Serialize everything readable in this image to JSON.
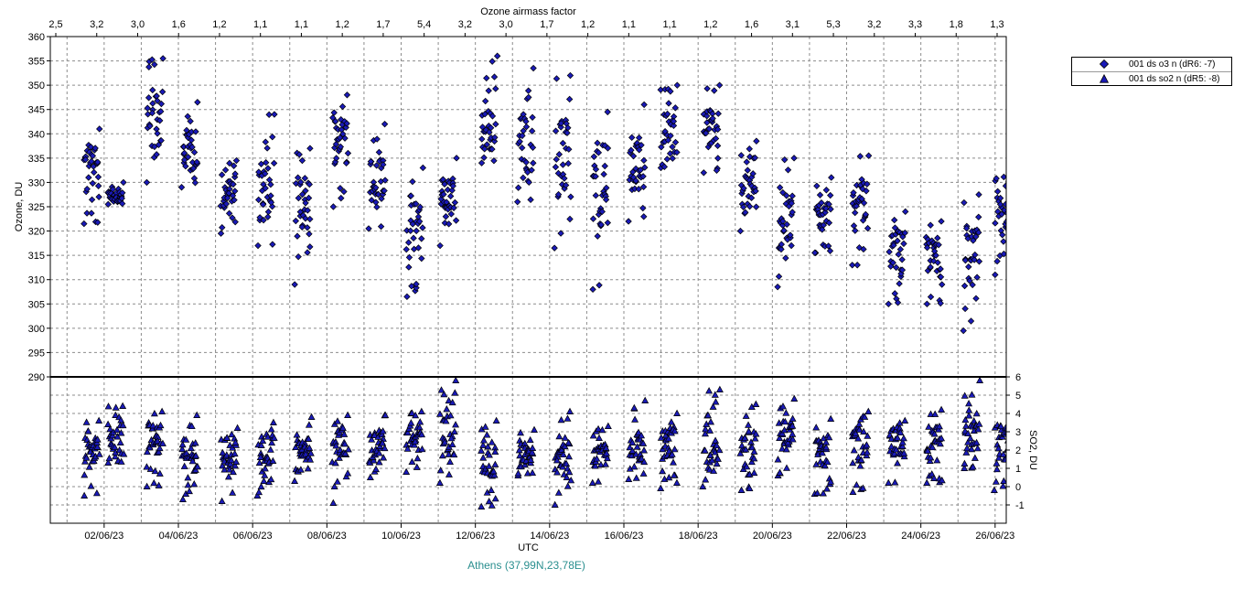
{
  "chart_data": {
    "type": "scatter",
    "top_axis_label": "Ozone airmass factor",
    "top_axis_ticks": [
      "2,5",
      "3,2",
      "3,0",
      "1,6",
      "1,2",
      "1,1",
      "1,1",
      "1,2",
      "1,7",
      "5,4",
      "3,2",
      "3,0",
      "1,7",
      "1,2",
      "1,1",
      "1,1",
      "1,2",
      "1,6",
      "3,1",
      "5,3",
      "3,2",
      "3,3",
      "1,8",
      "1,3"
    ],
    "xlabel": "UTC",
    "x_ticks": [
      "02/06/23",
      "04/06/23",
      "06/06/23",
      "08/06/23",
      "10/06/23",
      "12/06/23",
      "14/06/23",
      "16/06/23",
      "18/06/23",
      "20/06/23",
      "22/06/23",
      "24/06/23",
      "26/06/23"
    ],
    "x_range_days": [
      0.55,
      26.3
    ],
    "upper_panel": {
      "ylabel": "Ozone, DU",
      "ylim": [
        290,
        360
      ],
      "y_ticks": [
        360,
        355,
        350,
        345,
        340,
        335,
        330,
        325,
        320,
        315,
        310,
        305,
        300,
        295,
        290
      ]
    },
    "lower_panel": {
      "ylabel": "SO2, DU",
      "ylim": [
        -2,
        6
      ],
      "y_ticks": [
        6,
        5,
        4,
        3,
        2,
        1,
        0,
        -1
      ]
    },
    "grid": true,
    "legend_position": "top-right outside",
    "legend": [
      {
        "marker": "diamond",
        "label": "001 ds o3  n (dR6: -7)"
      },
      {
        "marker": "triangle",
        "label": "001 ds so2 n (dR5: -8)"
      }
    ],
    "footer": "Athens (37,99N,23,78E)",
    "colors": {
      "marker_fill": "#1a1ab8",
      "marker_edge": "#000000",
      "grid": "#8c8c8c",
      "footer": "#2a8f8f"
    },
    "series": [
      {
        "name": "001 ds o3  n (dR6: -7)",
        "panel": "upper",
        "marker": "diamond",
        "daily_clusters": [
          {
            "day": 1.65,
            "min": 321.5,
            "max": 341,
            "center": 334
          },
          {
            "day": 2.3,
            "min": 325.5,
            "max": 330,
            "center": 327
          },
          {
            "day": 3.35,
            "min": 330,
            "max": 355.5,
            "center": 343
          },
          {
            "day": 4.3,
            "min": 329,
            "max": 346.5,
            "center": 336
          },
          {
            "day": 5.35,
            "min": 319.5,
            "max": 334.5,
            "center": 328
          },
          {
            "day": 6.35,
            "min": 317,
            "max": 344,
            "center": 328
          },
          {
            "day": 7.35,
            "min": 309,
            "max": 337,
            "center": 324
          },
          {
            "day": 8.35,
            "min": 325,
            "max": 348,
            "center": 339
          },
          {
            "day": 9.35,
            "min": 320.5,
            "max": 342,
            "center": 332
          },
          {
            "day": 10.35,
            "min": 306.5,
            "max": 333,
            "center": 320
          },
          {
            "day": 11.25,
            "min": 317,
            "max": 335,
            "center": 327
          },
          {
            "day": 12.35,
            "min": 334,
            "max": 356,
            "center": 341
          },
          {
            "day": 13.35,
            "min": 326,
            "max": 353.5,
            "center": 338
          },
          {
            "day": 14.35,
            "min": 316.5,
            "max": 352,
            "center": 335
          },
          {
            "day": 15.35,
            "min": 308,
            "max": 344.5,
            "center": 328
          },
          {
            "day": 16.35,
            "min": 322,
            "max": 346,
            "center": 334
          },
          {
            "day": 17.2,
            "min": 333,
            "max": 350,
            "center": 340
          },
          {
            "day": 18.35,
            "min": 332,
            "max": 350,
            "center": 341
          },
          {
            "day": 19.35,
            "min": 320,
            "max": 338.5,
            "center": 329
          },
          {
            "day": 20.35,
            "min": 308.5,
            "max": 335,
            "center": 322
          },
          {
            "day": 21.35,
            "min": 315.5,
            "max": 331,
            "center": 323
          },
          {
            "day": 22.35,
            "min": 313,
            "max": 335.5,
            "center": 325
          },
          {
            "day": 23.35,
            "min": 305,
            "max": 324,
            "center": 316
          },
          {
            "day": 24.35,
            "min": 305,
            "max": 322,
            "center": 315
          },
          {
            "day": 25.35,
            "min": 299.5,
            "max": 327.5,
            "center": 314
          },
          {
            "day": 26.2,
            "min": 311,
            "max": 333.5,
            "center": 322
          }
        ]
      },
      {
        "name": "001 ds so2 n (dR5: -8)",
        "panel": "lower",
        "marker": "triangle",
        "daily_clusters": [
          {
            "day": 1.65,
            "min": -0.5,
            "max": 3.6,
            "center": 1.8
          },
          {
            "day": 2.3,
            "min": 1.3,
            "max": 4.4,
            "center": 2.5
          },
          {
            "day": 3.35,
            "min": 0,
            "max": 4.1,
            "center": 2.5
          },
          {
            "day": 4.3,
            "min": -0.7,
            "max": 3.9,
            "center": 1.8
          },
          {
            "day": 5.35,
            "min": -0.8,
            "max": 3.2,
            "center": 1.8
          },
          {
            "day": 6.35,
            "min": -0.5,
            "max": 3.5,
            "center": 2.0
          },
          {
            "day": 7.35,
            "min": 0.3,
            "max": 3.8,
            "center": 2.2
          },
          {
            "day": 8.35,
            "min": -0.9,
            "max": 3.9,
            "center": 2.2
          },
          {
            "day": 9.35,
            "min": 0.5,
            "max": 3.9,
            "center": 2.3
          },
          {
            "day": 10.35,
            "min": 0.8,
            "max": 4.1,
            "center": 2.6
          },
          {
            "day": 11.25,
            "min": 0.2,
            "max": 5.8,
            "center": 2.8
          },
          {
            "day": 12.35,
            "min": -1.1,
            "max": 3.6,
            "center": 1.5
          },
          {
            "day": 13.35,
            "min": 0.6,
            "max": 3.1,
            "center": 1.6
          },
          {
            "day": 14.35,
            "min": -1.0,
            "max": 4.1,
            "center": 1.8
          },
          {
            "day": 15.35,
            "min": 0.2,
            "max": 3.3,
            "center": 2.0
          },
          {
            "day": 16.35,
            "min": 0.4,
            "max": 4.7,
            "center": 2.0
          },
          {
            "day": 17.2,
            "min": -0.1,
            "max": 4.0,
            "center": 2.2
          },
          {
            "day": 18.35,
            "min": 0,
            "max": 5.3,
            "center": 2.0
          },
          {
            "day": 19.35,
            "min": -0.2,
            "max": 4.5,
            "center": 2.2
          },
          {
            "day": 20.35,
            "min": 0.6,
            "max": 4.8,
            "center": 2.8
          },
          {
            "day": 21.35,
            "min": -0.4,
            "max": 3.7,
            "center": 2.0
          },
          {
            "day": 22.35,
            "min": -0.3,
            "max": 4.1,
            "center": 2.4
          },
          {
            "day": 23.35,
            "min": 0.2,
            "max": 3.6,
            "center": 2.4
          },
          {
            "day": 24.35,
            "min": 0.2,
            "max": 4.2,
            "center": 2.4
          },
          {
            "day": 25.35,
            "min": 1.0,
            "max": 5.8,
            "center": 2.9
          },
          {
            "day": 26.2,
            "min": -0.2,
            "max": 3.9,
            "center": 2.4
          }
        ]
      }
    ]
  }
}
